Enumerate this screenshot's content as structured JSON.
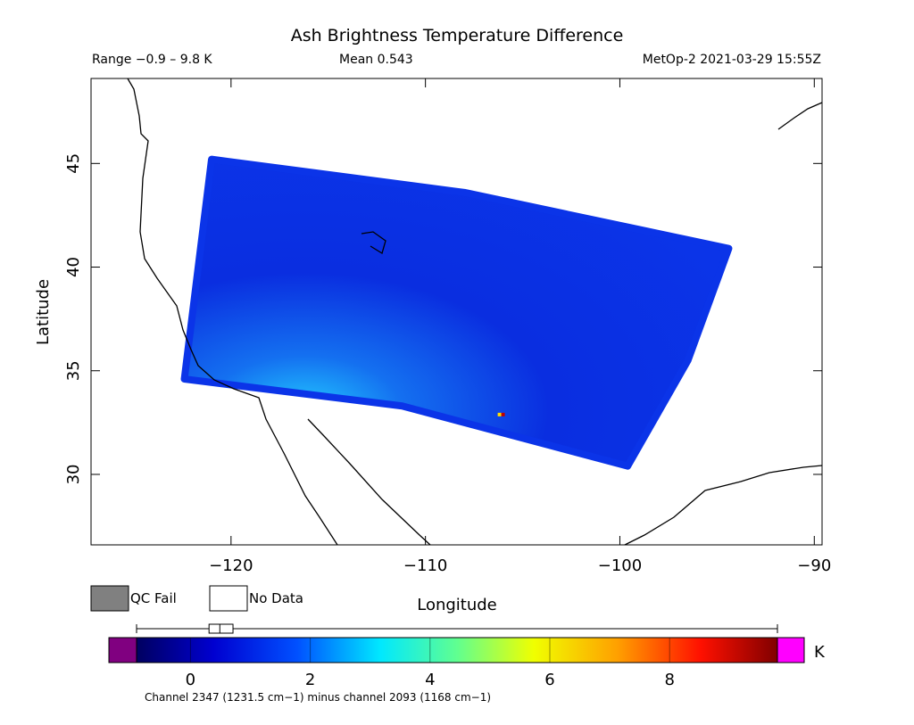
{
  "chart_data": {
    "type": "map",
    "title": "Ash Brightness Temperature Difference",
    "subtitle_left": "Range −0.9 – 9.8 K",
    "subtitle_center": "Mean 0.543",
    "subtitle_right": "MetOp-2 2021-03-29 15:55Z",
    "xlabel": "Longitude",
    "ylabel": "Latitude",
    "xlim": [
      -127.2,
      -89.6
    ],
    "ylim": [
      26.6,
      49.1
    ],
    "xticks": [
      {
        "value": -120,
        "label": "−120"
      },
      {
        "value": -110,
        "label": "−110"
      },
      {
        "value": -100,
        "label": "−100"
      },
      {
        "value": -90,
        "label": "−90"
      }
    ],
    "yticks": [
      30,
      35,
      40,
      45
    ],
    "swath": {
      "lon": [
        -121.0,
        -108.0,
        -94.4,
        -96.5,
        -99.6,
        -111.2,
        -122.4
      ],
      "lat": [
        45.2,
        43.6,
        40.9,
        35.5,
        30.4,
        33.3,
        34.6
      ]
    },
    "hot_pixel": {
      "lon": -106.1,
      "lat": 32.8
    },
    "legend": [
      "QC Fail",
      "No Data"
    ],
    "colorbar": {
      "lim": [
        -0.9,
        9.8
      ],
      "ticks": [
        0,
        2,
        4,
        6,
        8
      ],
      "unit": "K",
      "box": {
        "min": -0.9,
        "q1": 0.31,
        "median": 0.49,
        "q3": 0.71,
        "max": 9.8
      }
    },
    "footnote": "Channel 2347 (1231.5 cm−1) minus channel 2093 (1168 cm−1)"
  }
}
